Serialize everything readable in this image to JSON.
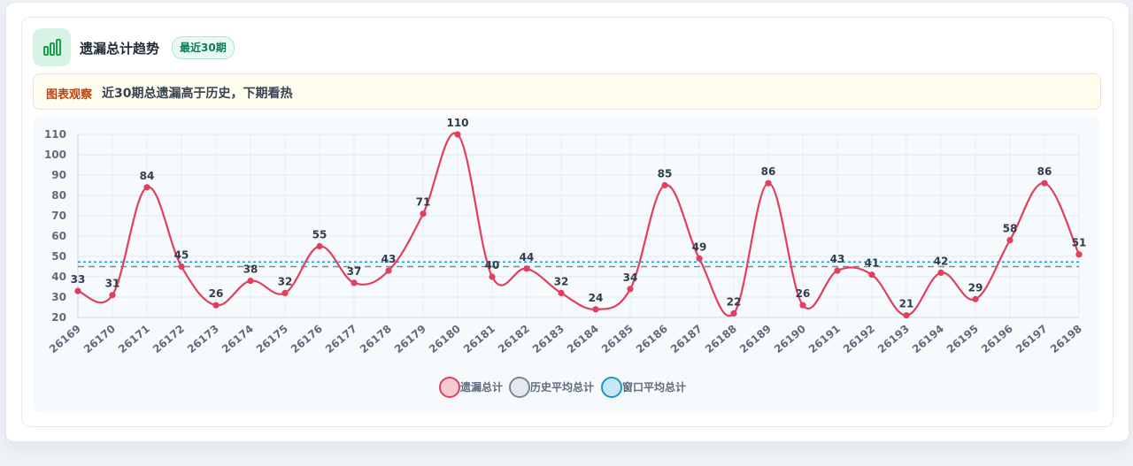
{
  "header": {
    "title": "遗漏总计趋势",
    "badge": "最近30期",
    "icon": "bar-chart-icon"
  },
  "insight": {
    "tag": "图表观察",
    "text": "近30期总遗漏高于历史，下期看热"
  },
  "chart_data": {
    "type": "line",
    "categories": [
      "26169",
      "26170",
      "26171",
      "26172",
      "26173",
      "26174",
      "26175",
      "26176",
      "26177",
      "26178",
      "26179",
      "26180",
      "26181",
      "26182",
      "26183",
      "26184",
      "26185",
      "26186",
      "26187",
      "26188",
      "26189",
      "26190",
      "26191",
      "26192",
      "26193",
      "26194",
      "26195",
      "26196",
      "26197",
      "26198"
    ],
    "series": [
      {
        "name": "遗漏总计",
        "values": [
          33,
          31,
          84,
          45,
          26,
          38,
          32,
          55,
          37,
          43,
          71,
          110,
          40,
          44,
          32,
          24,
          34,
          85,
          49,
          22,
          86,
          26,
          43,
          41,
          21,
          42,
          29,
          58,
          86,
          51
        ],
        "color": "#e0405e",
        "style": "solid-smooth"
      },
      {
        "name": "历史平均总计",
        "values": [
          45,
          45,
          45,
          45,
          45,
          45,
          45,
          45,
          45,
          45,
          45,
          45,
          45,
          45,
          45,
          45,
          45,
          45,
          45,
          45,
          45,
          45,
          45,
          45,
          45,
          45,
          45,
          45,
          45,
          45
        ],
        "color": "#7b8794",
        "style": "dashed"
      },
      {
        "name": "窗口平均总计",
        "values": [
          47.3,
          47.3,
          47.3,
          47.3,
          47.3,
          47.3,
          47.3,
          47.3,
          47.3,
          47.3,
          47.3,
          47.3,
          47.3,
          47.3,
          47.3,
          47.3,
          47.3,
          47.3,
          47.3,
          47.3,
          47.3,
          47.3,
          47.3,
          47.3,
          47.3,
          47.3,
          47.3,
          47.3,
          47.3,
          47.3
        ],
        "color": "#1a98c4",
        "style": "dotted"
      }
    ],
    "yticks": [
      20,
      30,
      40,
      50,
      60,
      70,
      80,
      90,
      100,
      110
    ],
    "ylim": [
      20,
      110
    ],
    "grid": true,
    "legend_position": "bottom-center"
  }
}
